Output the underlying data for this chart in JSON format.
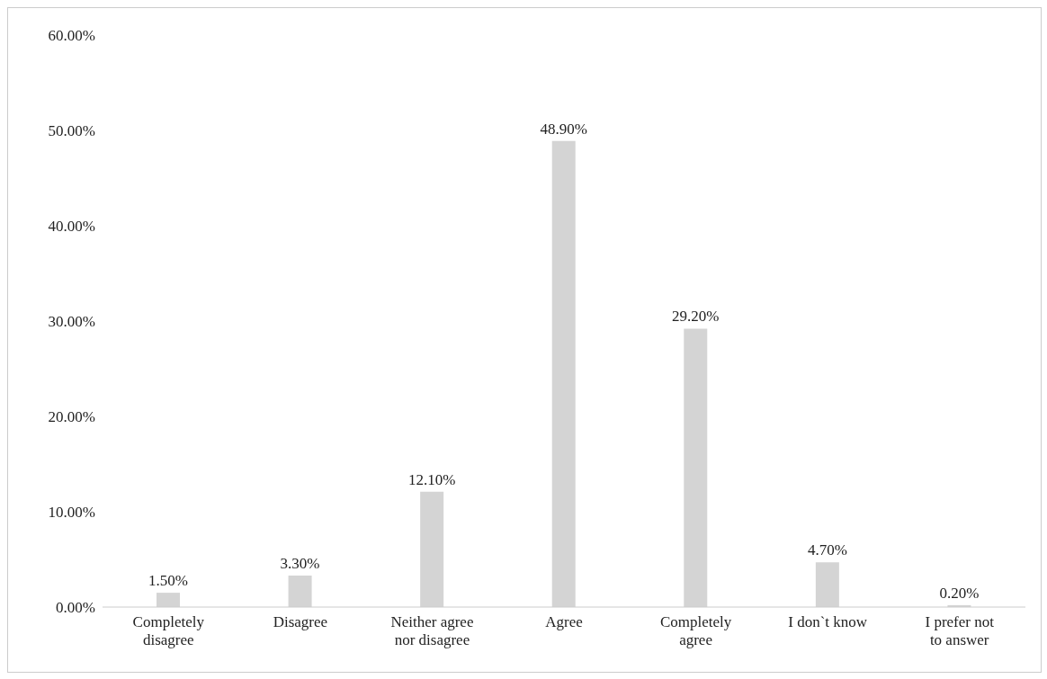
{
  "chart_data": {
    "type": "bar",
    "categories": [
      "Completely disagree",
      "Disagree",
      "Neither agree nor disagree",
      "Agree",
      "Completely agree",
      "I don`t know",
      "I prefer not to answer"
    ],
    "values": [
      1.5,
      3.3,
      12.1,
      48.9,
      29.2,
      4.7,
      0.2
    ],
    "value_labels": [
      "1.50%",
      "3.30%",
      "12.10%",
      "48.90%",
      "29.20%",
      "4.70%",
      "0.20%"
    ],
    "color": "#d4d4d4",
    "ylim": [
      0,
      60
    ],
    "yticks": [
      {
        "value": 0,
        "label": "0.00%"
      },
      {
        "value": 10,
        "label": "10.00%"
      },
      {
        "value": 20,
        "label": "20.00%"
      },
      {
        "value": 30,
        "label": "30.00%"
      },
      {
        "value": 40,
        "label": "40.00%"
      },
      {
        "value": 50,
        "label": "50.00%"
      },
      {
        "value": 60,
        "label": "60.00%"
      }
    ],
    "grid": false,
    "legend": false
  }
}
